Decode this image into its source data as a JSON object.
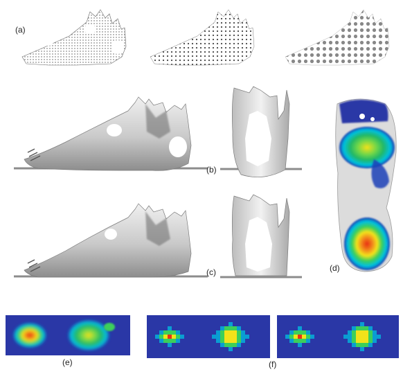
{
  "figure": {
    "panels": [
      {
        "id": "a",
        "label": "(a)"
      },
      {
        "id": "b",
        "label": "(b)"
      },
      {
        "id": "c",
        "label": "(c)"
      },
      {
        "id": "d",
        "label": "(d)"
      },
      {
        "id": "e",
        "label": "(e)"
      },
      {
        "id": "f",
        "label": "(f)"
      }
    ]
  },
  "colors": {
    "pressure_background": "#2a37a6",
    "pressure_ring": "#00c0e0",
    "pressure_mid": "#3ccf5a",
    "pressure_high": "#f2e21a",
    "pressure_peak": "#e83018",
    "mesh_fill": "#d9d9d9",
    "ground": "#8c8c8c"
  }
}
